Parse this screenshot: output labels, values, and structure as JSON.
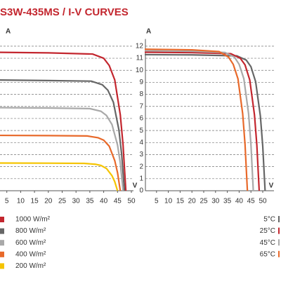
{
  "header": {
    "title": "S3W-435MS / I-V CURVES"
  },
  "chart_data": [
    {
      "type": "line",
      "y_label": "A",
      "x_label": "V",
      "xlim": [
        0,
        50
      ],
      "ylim": [
        0,
        12.6
      ],
      "xticks": [
        5,
        10,
        15,
        20,
        25,
        30,
        35,
        40,
        45,
        50
      ],
      "series": [
        {
          "name": "1000 W/m²",
          "color": "#c3262e",
          "x": [
            0,
            20,
            36,
            40,
            42,
            44,
            46,
            47,
            48
          ],
          "values": [
            11.5,
            11.45,
            11.35,
            11.0,
            10.4,
            9.2,
            6.3,
            3.8,
            0
          ]
        },
        {
          "name": "800 W/m²",
          "color": "#666666",
          "x": [
            0,
            20,
            35.5,
            39.5,
            41.5,
            43.5,
            45.5,
            46.5,
            47.5
          ],
          "values": [
            9.2,
            9.15,
            9.1,
            8.8,
            8.35,
            7.35,
            5.05,
            3.0,
            0
          ]
        },
        {
          "name": "600 W/m²",
          "color": "#a9a9a9",
          "x": [
            0,
            20,
            35,
            39,
            41,
            43,
            45,
            46,
            47
          ],
          "values": [
            6.9,
            6.87,
            6.82,
            6.6,
            6.25,
            5.5,
            3.8,
            2.3,
            0
          ]
        },
        {
          "name": "400 W/m²",
          "color": "#e8692a",
          "x": [
            0,
            20,
            34,
            38,
            40,
            42,
            44,
            45,
            46
          ],
          "values": [
            4.6,
            4.58,
            4.55,
            4.4,
            4.2,
            3.7,
            2.5,
            1.5,
            0
          ]
        },
        {
          "name": "200 W/m²",
          "color": "#f5c400",
          "x": [
            0,
            20,
            33,
            37,
            39,
            41,
            43,
            44,
            45
          ],
          "values": [
            2.3,
            2.29,
            2.27,
            2.2,
            2.1,
            1.85,
            1.25,
            0.75,
            0
          ]
        }
      ]
    },
    {
      "type": "line",
      "y_label": "A",
      "x_label": "V",
      "xlim": [
        0,
        50
      ],
      "ylim": [
        0,
        12.6
      ],
      "xticks": [
        5,
        10,
        15,
        20,
        25,
        30,
        35,
        40,
        45,
        50
      ],
      "yticks": [
        0,
        1,
        2,
        3,
        4,
        5,
        6,
        7,
        8,
        9,
        10,
        11,
        12
      ],
      "series": [
        {
          "name": "5°C",
          "color": "#666666",
          "x": [
            0,
            20,
            39,
            43,
            45,
            47,
            49,
            50,
            51
          ],
          "values": [
            11.3,
            11.28,
            11.2,
            10.85,
            10.3,
            9.05,
            6.2,
            3.7,
            0
          ]
        },
        {
          "name": "25°C",
          "color": "#c3262e",
          "x": [
            0,
            20,
            36.5,
            40.5,
            42.5,
            44.5,
            46.5,
            47.5,
            48.5
          ],
          "values": [
            11.5,
            11.47,
            11.38,
            11.0,
            10.45,
            9.2,
            6.3,
            3.8,
            0
          ]
        },
        {
          "name": "45°C",
          "color": "#a9a9a9",
          "x": [
            0,
            20,
            34,
            38,
            40,
            42,
            44,
            45,
            46
          ],
          "values": [
            11.62,
            11.58,
            11.48,
            11.1,
            10.5,
            9.3,
            6.4,
            3.85,
            0
          ]
        },
        {
          "name": "65°C",
          "color": "#e8692a",
          "x": [
            0,
            20,
            31.5,
            35.5,
            37.5,
            39.5,
            41.5,
            42.5,
            43.5
          ],
          "values": [
            11.75,
            11.7,
            11.55,
            11.1,
            10.5,
            9.3,
            6.4,
            3.85,
            0
          ]
        }
      ]
    }
  ]
}
